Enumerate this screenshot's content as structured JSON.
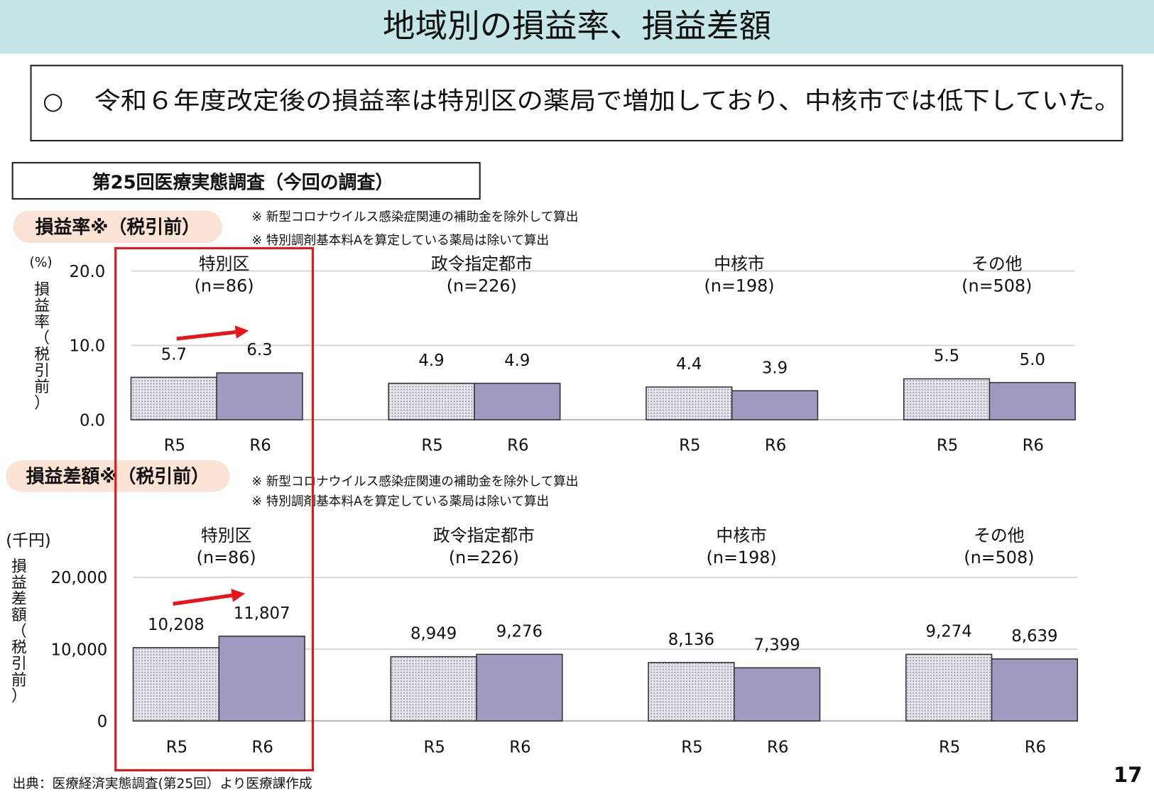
{
  "header": {
    "title": "地域別の損益率、損益差額",
    "band_color": "#c5e6e6"
  },
  "summary": {
    "bullet": "○",
    "text": "令和６年度改定後の損益率は特別区の薬局で増加しており、中核市では低下していた。"
  },
  "survey_box": {
    "label": "第25回医療実態調査（今回の調査）"
  },
  "notes": [
    "※ 新型コロナウイルス感染症関連の補助金を除外して算出",
    "※ 特別調剤基本料Aを算定している薬局は除いて算出"
  ],
  "footer": {
    "source": "出典：医療経済実態調査(第25回）より医療課作成",
    "page": "17"
  },
  "colors": {
    "r6_fill": "#a09ac0",
    "r5_pattern": "dotted-grey",
    "highlight": "#e8141a",
    "pill": "#fbe3d6"
  },
  "chart_data": [
    {
      "type": "bar",
      "title": "損益率※（税引前）",
      "unit": "(%)",
      "ylabel": "損益率（税引前）",
      "ylim": [
        0,
        20
      ],
      "yticks": [
        "20.0",
        "10.0",
        "0.0"
      ],
      "grid": true,
      "groups": [
        {
          "name": "特別区",
          "n": "(n=86)",
          "categories": [
            "R5",
            "R6"
          ],
          "values": [
            5.7,
            6.3
          ],
          "labels": [
            "5.7",
            "6.3"
          ],
          "highlight": true,
          "arrow": true
        },
        {
          "name": "政令指定都市",
          "n": "(n=226)",
          "categories": [
            "R5",
            "R6"
          ],
          "values": [
            4.9,
            4.9
          ],
          "labels": [
            "4.9",
            "4.9"
          ]
        },
        {
          "name": "中核市",
          "n": "(n=198)",
          "categories": [
            "R5",
            "R6"
          ],
          "values": [
            4.4,
            3.9
          ],
          "labels": [
            "4.4",
            "3.9"
          ]
        },
        {
          "name": "その他",
          "n": "(n=508)",
          "categories": [
            "R5",
            "R6"
          ],
          "values": [
            5.5,
            5.0
          ],
          "labels": [
            "5.5",
            "5.0"
          ]
        }
      ]
    },
    {
      "type": "bar",
      "title": "損益差額※（税引前）",
      "unit": "(千円)",
      "ylabel": "損益差額（税引前）",
      "ylim": [
        0,
        20000
      ],
      "yticks": [
        "20,000",
        "10,000",
        "0"
      ],
      "grid": true,
      "groups": [
        {
          "name": "特別区",
          "n": "(n=86)",
          "categories": [
            "R5",
            "R6"
          ],
          "values": [
            10208,
            11807
          ],
          "labels": [
            "10,208",
            "11,807"
          ],
          "highlight": true,
          "arrow": true
        },
        {
          "name": "政令指定都市",
          "n": "(n=226)",
          "categories": [
            "R5",
            "R6"
          ],
          "values": [
            8949,
            9276
          ],
          "labels": [
            "8,949",
            "9,276"
          ]
        },
        {
          "name": "中核市",
          "n": "(n=198)",
          "categories": [
            "R5",
            "R6"
          ],
          "values": [
            8136,
            7399
          ],
          "labels": [
            "8,136",
            "7,399"
          ]
        },
        {
          "name": "その他",
          "n": "(n=508)",
          "categories": [
            "R5",
            "R6"
          ],
          "values": [
            9274,
            8639
          ],
          "labels": [
            "9,274",
            "8,639"
          ]
        }
      ]
    }
  ]
}
